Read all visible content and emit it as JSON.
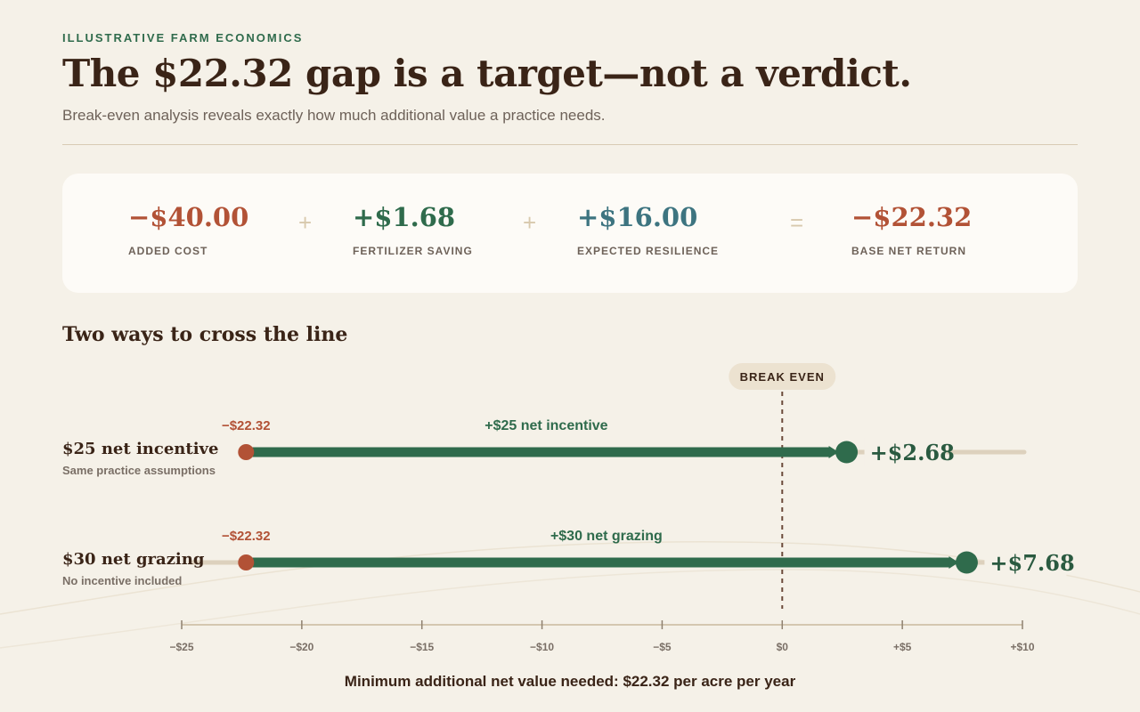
{
  "header": {
    "eyebrow": "ILLUSTRATIVE FARM ECONOMICS",
    "title": "The $22.32 gap is a target—not a verdict.",
    "subtitle": "Break-even analysis reveals exactly how much additional value a practice needs."
  },
  "summary": {
    "metrics": [
      {
        "value": "−$40.00",
        "label": "ADDED COST",
        "color": "#b25236"
      },
      {
        "value": "+$1.68",
        "label": "FERTILIZER SAVING",
        "color": "#2f6b4c"
      },
      {
        "value": "+$16.00",
        "label": "EXPECTED RESILIENCE",
        "color": "#3d7480"
      },
      {
        "value": "−$22.32",
        "label": "BASE NET RETURN",
        "color": "#b25236"
      }
    ],
    "operators": [
      "+",
      "+",
      "="
    ]
  },
  "section": {
    "title": "Two ways to cross the line"
  },
  "chart_data": {
    "type": "dumbbell",
    "break_even_label": "BREAK EVEN",
    "break_even_value": 0,
    "xlim": [
      -25,
      10
    ],
    "ticks": [
      -25,
      -20,
      -15,
      -10,
      -5,
      0,
      5,
      10
    ],
    "tick_labels": [
      "−$25",
      "−$20",
      "−$15",
      "−$10",
      "−$5",
      "$0",
      "+$5",
      "+$10"
    ],
    "rows": [
      {
        "name": "$25 net incentive",
        "note": "Same practice assumptions",
        "start": -22.32,
        "end": 2.68,
        "start_label": "−$22.32",
        "arrow_label": "+$25 net incentive",
        "end_label": "+$2.68"
      },
      {
        "name": "$30 net grazing",
        "note": "No incentive included",
        "start": -22.32,
        "end": 7.68,
        "start_label": "−$22.32",
        "arrow_label": "+$30 net grazing",
        "end_label": "+$7.68"
      }
    ],
    "colors": {
      "start": "#b25236",
      "bar": "#2f6b4c",
      "track": "#ddd1bd",
      "axis": "#c9b99d",
      "break_even_line": "#6b4a3a",
      "pill": "#ece2d0"
    }
  },
  "footer": {
    "note": "Minimum additional net value needed: $22.32 per acre per year"
  }
}
